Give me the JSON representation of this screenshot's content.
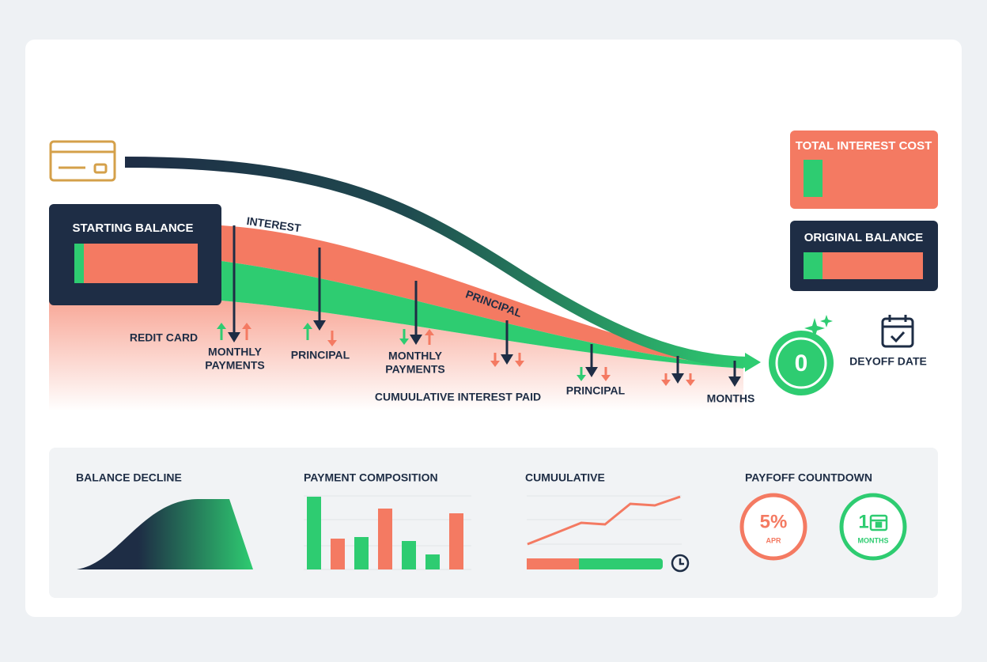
{
  "summary": {
    "total_interest_cost": "TOTAL INTEREST COST",
    "original_balance": "ORIGINAL BALANCE"
  },
  "flow": {
    "starting_balance": "STARTING BALANCE",
    "curve_labels": [
      "INTEREST",
      "PRINCIPAL"
    ],
    "labels": [
      "REDIT CARD",
      "MONTHLY",
      "PAYMENTS",
      "PRINCIPAL",
      "MONTHLY",
      "PAYMENTS",
      "CUMUULATIVE INTEREST PAID",
      "PRINCIPAL",
      "MONTHS"
    ],
    "payoff_value": 0,
    "payoff_date_label": "DEYOFF DATE"
  },
  "panels": {
    "balance_decline": "BALANCE DECLINE",
    "payment_composition": "PAYMENT COMPOSITION",
    "cumulative": "CUMUULATIVE",
    "countdown": {
      "title": "PAYFOFF COUNTDOWN",
      "apr_value": "5%",
      "apr_label": "APR",
      "months_value": 1,
      "months_label": "MONTHS"
    }
  }
}
